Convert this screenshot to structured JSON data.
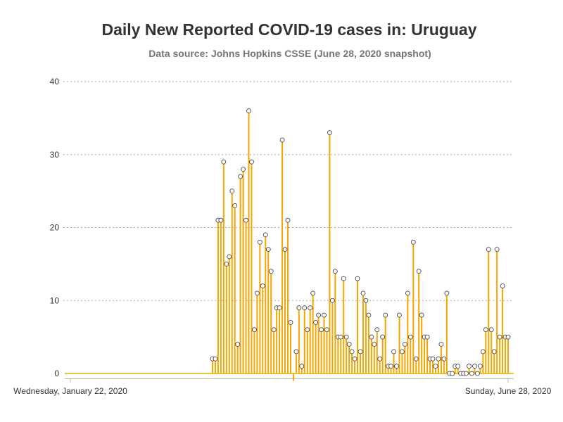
{
  "header": {
    "title": "Daily New Reported COVID-19 cases in: Uruguay",
    "subtitle": "Data source: Johns Hopkins CSSE (June 28, 2020 snapshot)"
  },
  "colors": {
    "bar": "#f5a500",
    "baseline": "#e0b000",
    "grid": "#aaaaaa",
    "marker_fill": "#ffffff",
    "marker_stroke": "#333333"
  },
  "chart_data": {
    "type": "bar",
    "title": "Daily New Reported COVID-19 cases in: Uruguay",
    "subtitle": "Data source: Johns Hopkins CSSE (June 28, 2020 snapshot)",
    "xlabel": "",
    "ylabel": "",
    "x_start": "2020-01-22",
    "x_end": "2020-06-28",
    "x_tick_labels": [
      "Wednesday, January 22, 2020",
      "Sunday, June 28, 2020"
    ],
    "ylim": [
      0,
      40
    ],
    "y_ticks": [
      "0",
      "10",
      "20",
      "30",
      "40"
    ],
    "grid": true,
    "legend": "none",
    "values": [
      0,
      0,
      0,
      0,
      0,
      0,
      0,
      0,
      0,
      0,
      0,
      0,
      0,
      0,
      0,
      0,
      0,
      0,
      0,
      0,
      0,
      0,
      0,
      0,
      0,
      0,
      0,
      0,
      0,
      0,
      0,
      0,
      0,
      0,
      0,
      0,
      0,
      0,
      0,
      0,
      0,
      0,
      0,
      0,
      0,
      0,
      0,
      0,
      0,
      0,
      0,
      0,
      0,
      2,
      2,
      21,
      21,
      29,
      15,
      16,
      25,
      23,
      4,
      27,
      28,
      21,
      36,
      29,
      6,
      11,
      18,
      12,
      19,
      17,
      14,
      6,
      9,
      9,
      32,
      17,
      21,
      7,
      -1,
      3,
      9,
      1,
      9,
      6,
      9,
      11,
      7,
      8,
      6,
      8,
      6,
      33,
      10,
      14,
      5,
      5,
      13,
      5,
      4,
      3,
      2,
      13,
      3,
      11,
      10,
      8,
      5,
      4,
      6,
      2,
      5,
      8,
      1,
      1,
      3,
      1,
      8,
      3,
      4,
      11,
      5,
      18,
      2,
      14,
      8,
      5,
      5,
      2,
      2,
      1,
      2,
      4,
      2,
      11,
      0,
      0,
      1,
      1,
      0,
      0,
      0,
      1,
      0,
      1,
      0,
      1,
      3,
      6,
      17,
      6,
      3,
      17,
      5,
      12,
      5,
      5
    ]
  }
}
